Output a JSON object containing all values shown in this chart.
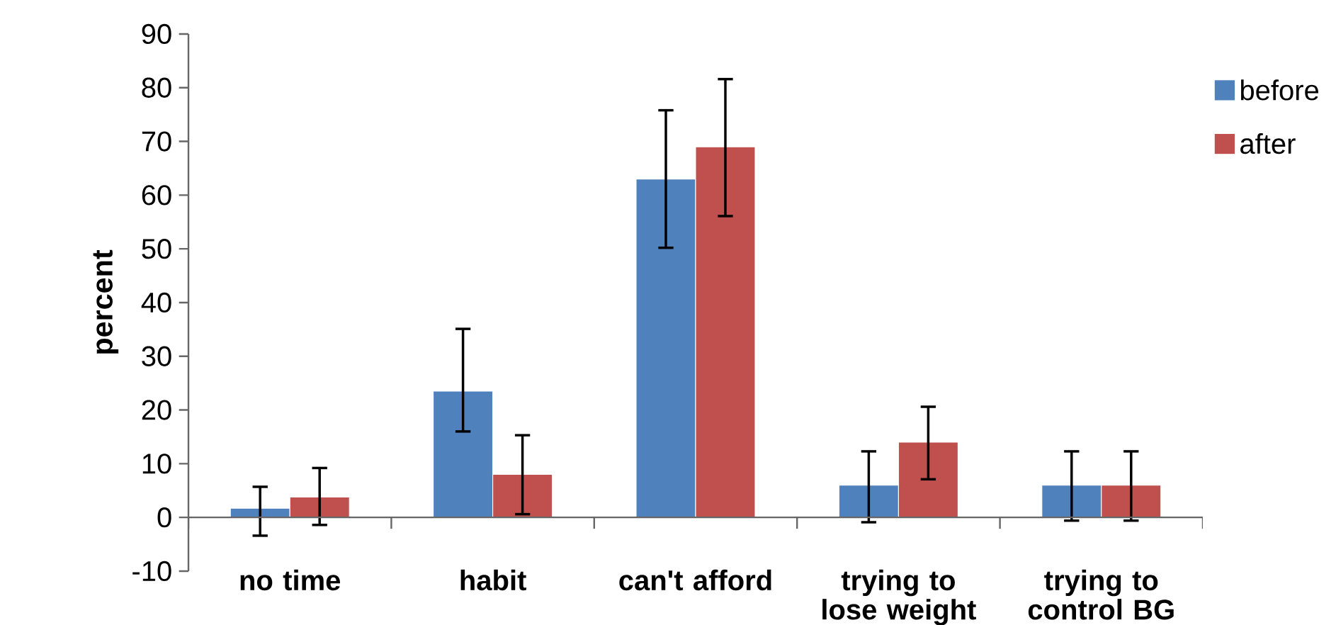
{
  "chart_data": {
    "type": "bar",
    "categories": [
      "no time",
      "habit",
      "can't afford",
      "trying to lose weight",
      "trying to control BG"
    ],
    "series": [
      {
        "name": "before",
        "color": "#4f81bd",
        "values": [
          1.7,
          23.5,
          63,
          6,
          6
        ],
        "errors": [
          [
            -3.4,
            5.7
          ],
          [
            16,
            35.1
          ],
          [
            50.2,
            75.8
          ],
          [
            -0.9,
            12.3
          ],
          [
            -0.6,
            12.3
          ]
        ]
      },
      {
        "name": "after",
        "color": "#c0504d",
        "values": [
          3.8,
          8,
          69,
          14,
          6
        ],
        "errors": [
          [
            -1.4,
            9.2
          ],
          [
            0.6,
            15.3
          ],
          [
            56.1,
            81.6
          ],
          [
            7.1,
            20.6
          ],
          [
            -0.6,
            12.3
          ]
        ]
      }
    ],
    "ylabel": "percent",
    "ylim": [
      -10,
      90
    ],
    "yticks": [
      -10,
      0,
      10,
      20,
      30,
      40,
      50,
      60,
      70,
      80,
      90
    ],
    "legend": "right"
  }
}
